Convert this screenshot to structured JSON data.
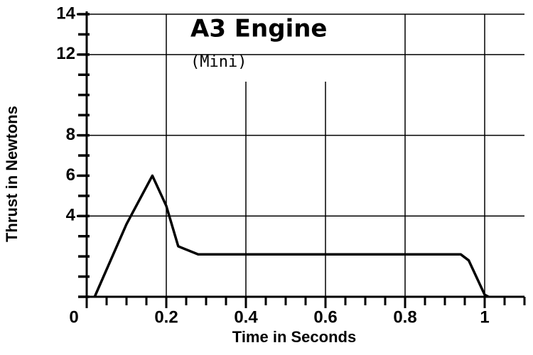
{
  "chart_data": {
    "type": "line",
    "title": "A3 Engine",
    "subtitle": "(Mini)",
    "x_label": "Time in Seconds",
    "y_label": "Thrust in Newtons",
    "xlim": [
      0,
      1.1
    ],
    "ylim": [
      0,
      14
    ],
    "xticks": [
      0,
      0.2,
      0.4,
      0.6,
      0.8,
      1
    ],
    "yticks": [
      4,
      6,
      8,
      12,
      14
    ],
    "xminor": 0.05,
    "yminor": 1,
    "ygrid": [
      4,
      8,
      12,
      14
    ],
    "xgrid": [
      0.2,
      0.4,
      0.6,
      0.8,
      1
    ],
    "series": [
      {
        "color": "#000000",
        "x": [
          0.02,
          0.1,
          0.165,
          0.2,
          0.23,
          0.28,
          0.5,
          0.94,
          0.96,
          1.0,
          1.01
        ],
        "values": [
          0,
          3.6,
          6.0,
          4.5,
          2.5,
          2.1,
          2.1,
          2.1,
          1.8,
          0.1,
          0
        ]
      }
    ]
  }
}
